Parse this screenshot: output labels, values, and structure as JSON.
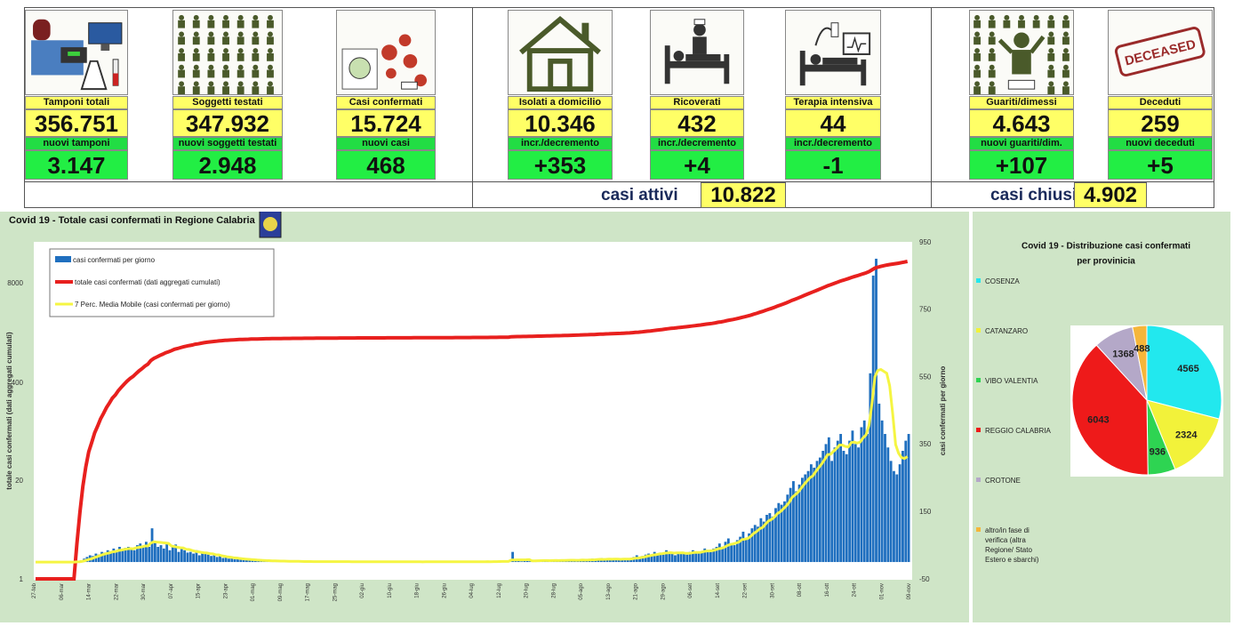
{
  "dashboard": {
    "cards": [
      {
        "label": "Tamponi totali",
        "value": "356.751",
        "sub_label": "nuovi tamponi",
        "sub_value": "3.147",
        "icon": "lab-equipment-icon"
      },
      {
        "label": "Soggetti testati",
        "value": "347.932",
        "sub_label": "nuovi soggetti testati",
        "sub_value": "2.948",
        "icon": "people-grid-icon"
      },
      {
        "label": "Casi confermati",
        "value": "15.724",
        "sub_label": "nuovi casi",
        "sub_value": "468",
        "icon": "virus-icon"
      },
      {
        "label": "Isolati a domicilio",
        "value": "10.346",
        "sub_label": "incr./decremento",
        "sub_value": "+353",
        "icon": "house-icon"
      },
      {
        "label": "Ricoverati",
        "value": "432",
        "sub_label": "incr./decremento",
        "sub_value": "+4",
        "icon": "hospital-bed-icon"
      },
      {
        "label": "Terapia intensiva",
        "value": "44",
        "sub_label": "incr./decremento",
        "sub_value": "-1",
        "icon": "icu-bed-icon"
      },
      {
        "label": "Guariti/dimessi",
        "value": "4.643",
        "sub_label": "nuovi guariti/dim.",
        "sub_value": "+107",
        "icon": "recovered-person-icon"
      },
      {
        "label": "Deceduti",
        "value": "259",
        "sub_label": "nuovi deceduti",
        "sub_value": "+5",
        "icon": "deceased-stamp-icon"
      }
    ],
    "deceased_stamp_text": "DECEASED",
    "active_label": "casi attivi",
    "active_value": "10.822",
    "closed_label": "casi chiusi",
    "closed_value": "4.902",
    "colors": {
      "yellow": "#ffff66",
      "green": "#22ee44",
      "panel": "#cfe5c7"
    }
  },
  "chart_data": [
    {
      "type": "bar",
      "title": "Covid 19 - Totale casi confermati in Regione Calabria",
      "ylabel": "totale casi confermati (dati aggregati cumulati)",
      "y2label": "casi confermati per giorno",
      "left_ticks": [
        "8000",
        "400",
        "20",
        "1"
      ],
      "right_ticks": [
        "950",
        "750",
        "550",
        "350",
        "150",
        "-50"
      ],
      "ylim_right": [
        -50,
        950
      ],
      "legend": [
        "casi confermati per giorno",
        "totale casi confermati (dati aggregati cumulati)",
        "7 Perc. Media Mobile (casi confermati per giorno)"
      ],
      "series": [
        {
          "name": "casi confermati per giorno",
          "color": "#1f6fbf",
          "values": [
            0,
            0,
            0,
            0,
            0,
            0,
            0,
            0,
            0,
            0,
            0,
            0,
            0,
            0,
            2,
            5,
            10,
            15,
            20,
            18,
            25,
            22,
            30,
            28,
            35,
            32,
            40,
            30,
            45,
            38,
            42,
            45,
            40,
            35,
            50,
            55,
            48,
            60,
            45,
            100,
            62,
            45,
            50,
            40,
            55,
            35,
            45,
            52,
            30,
            40,
            35,
            28,
            30,
            25,
            35,
            20,
            30,
            25,
            22,
            18,
            20,
            15,
            18,
            12,
            14,
            10,
            12,
            8,
            10,
            8,
            6,
            8,
            5,
            6,
            4,
            5,
            4,
            3,
            4,
            3,
            2,
            3,
            2,
            2,
            3,
            2,
            1,
            2,
            1,
            2,
            1,
            1,
            2,
            1,
            1,
            1,
            2,
            1,
            1,
            1,
            1,
            1,
            2,
            1,
            1,
            1,
            1,
            0,
            1,
            1,
            0,
            1,
            1,
            0,
            1,
            0,
            1,
            1,
            0,
            1,
            0,
            1,
            0,
            1,
            1,
            0,
            1,
            0,
            1,
            0,
            1,
            0,
            1,
            1,
            0,
            1,
            0,
            1,
            0,
            1,
            1,
            2,
            1,
            0,
            1,
            1,
            0,
            2,
            1,
            0,
            1,
            1,
            2,
            1,
            1,
            2,
            1,
            2,
            3,
            2,
            1,
            30,
            4,
            3,
            2,
            4,
            3,
            5,
            4,
            3,
            6,
            4,
            5,
            3,
            4,
            6,
            5,
            4,
            5,
            7,
            5,
            6,
            5,
            4,
            6,
            8,
            6,
            7,
            10,
            5,
            8,
            12,
            6,
            9,
            10,
            8,
            7,
            10,
            6,
            12,
            8,
            10,
            15,
            20,
            12,
            18,
            22,
            25,
            20,
            30,
            25,
            28,
            22,
            35,
            30,
            25,
            20,
            30,
            28,
            25,
            22,
            30,
            35,
            28,
            30,
            32,
            40,
            35,
            30,
            40,
            45,
            55,
            40,
            60,
            70,
            55,
            50,
            65,
            75,
            90,
            70,
            85,
            100,
            110,
            105,
            130,
            120,
            140,
            145,
            135,
            160,
            175,
            170,
            180,
            200,
            220,
            240,
            210,
            230,
            250,
            260,
            270,
            290,
            280,
            300,
            310,
            330,
            350,
            370,
            300,
            340,
            360,
            380,
            330,
            320,
            360,
            390,
            350,
            340,
            400,
            420,
            380,
            560,
            850,
            900,
            470,
            420,
            380,
            340,
            300,
            270,
            260,
            290,
            330,
            360,
            380
          ]
        },
        {
          "name": "totale casi confermati (dati aggregati cumulati)",
          "color": "#e8201e"
        },
        {
          "name": "7 Perc. Media Mobile (casi confermati per giorno)",
          "color": "#f5f542"
        }
      ],
      "x_tick_labels": [
        "27-feb",
        "06-mar",
        "14-mar",
        "22-mar",
        "30-mar",
        "07-apr",
        "15-apr",
        "23-apr",
        "01-mag",
        "09-mag",
        "17-mag",
        "25-mag",
        "02-giu",
        "10-giu",
        "18-giu",
        "26-giu",
        "04-lug",
        "12-lug",
        "20-lug",
        "28-lug",
        "05-ago",
        "13-ago",
        "21-ago",
        "29-ago",
        "06-set",
        "14-set",
        "22-set",
        "30-set",
        "08-ott",
        "16-ott",
        "24-ott",
        "01-nov",
        "09-nov"
      ]
    },
    {
      "type": "pie",
      "title": "Covid 19 - Distribuzione casi confermati per provinicia",
      "slices": [
        {
          "label": "COSENZA",
          "value": 4565,
          "color": "#22e8ee"
        },
        {
          "label": "CATANZARO",
          "value": 2324,
          "color": "#f2f23a"
        },
        {
          "label": "VIBO VALENTIA",
          "value": 936,
          "color": "#2ed452"
        },
        {
          "label": "REGGIO CALABRIA",
          "value": 6043,
          "color": "#ee1a1a"
        },
        {
          "label": "CROTONE",
          "value": 1368,
          "color": "#b4a8c8"
        },
        {
          "label": "altro/in fase di verifica (altra Regione/ Stato Estero e sbarchi)",
          "value": 488,
          "color": "#f5b63a"
        }
      ]
    }
  ]
}
